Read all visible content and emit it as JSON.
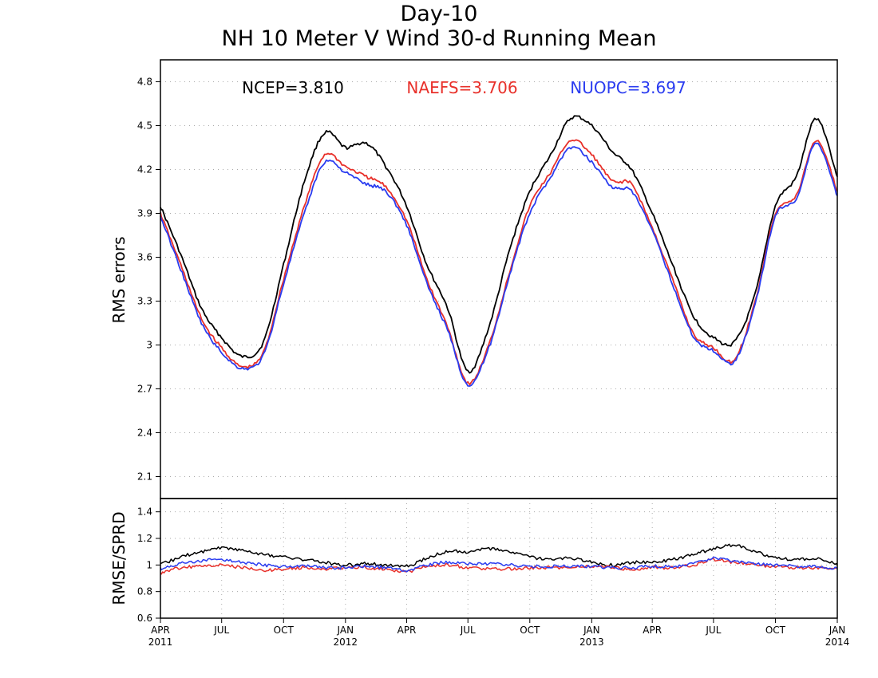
{
  "titles": [
    "Day-10",
    "NH 10 Meter V Wind 30-d Running Mean"
  ],
  "colors": {
    "NCEP": "#000000",
    "NAEFS": "#e8302a",
    "NUOPC": "#2a3cf0"
  },
  "chart_data": [
    {
      "type": "line",
      "panel": "top",
      "ylabel": "RMS errors",
      "ylim": [
        1.95,
        4.95
      ],
      "yticks": [
        2.1,
        2.4,
        2.7,
        3,
        3.3,
        3.6,
        3.9,
        4.2,
        4.5,
        4.8
      ],
      "ytick_labels": [
        "2.1",
        "2.4",
        "2.7",
        "3",
        "3.3",
        "3.6",
        "3.9",
        "4.2",
        "4.5",
        "4.8"
      ],
      "xlim": [
        "2011-04-01",
        "2014-01-01"
      ],
      "grid": true,
      "stats": [
        {
          "name": "NCEP",
          "label": "NCEP=3.810",
          "value": 3.81
        },
        {
          "name": "NAEFS",
          "label": "NAEFS=3.706",
          "value": 3.706
        },
        {
          "name": "NUOPC",
          "label": "NUOPC=3.697",
          "value": 3.697
        }
      ],
      "x": [
        "2011-04-01",
        "2011-05-01",
        "2011-06-01",
        "2011-07-01",
        "2011-08-01",
        "2011-09-01",
        "2011-10-01",
        "2011-11-01",
        "2011-12-01",
        "2012-01-01",
        "2012-02-01",
        "2012-03-01",
        "2012-04-01",
        "2012-05-01",
        "2012-06-01",
        "2012-07-01",
        "2012-08-01",
        "2012-09-01",
        "2012-10-01",
        "2012-11-01",
        "2012-12-01",
        "2013-01-01",
        "2013-02-01",
        "2013-03-01",
        "2013-04-01",
        "2013-05-01",
        "2013-06-01",
        "2013-07-01",
        "2013-08-01",
        "2013-09-01",
        "2013-10-01",
        "2013-11-01",
        "2013-12-01",
        "2014-01-01"
      ],
      "series": [
        {
          "name": "NCEP",
          "values": [
            3.95,
            3.62,
            3.25,
            3.05,
            2.92,
            3.02,
            3.55,
            4.12,
            4.45,
            4.35,
            4.38,
            4.22,
            3.95,
            3.55,
            3.25,
            2.82,
            3.12,
            3.65,
            4.05,
            4.3,
            4.55,
            4.5,
            4.32,
            4.2,
            3.9,
            3.55,
            3.2,
            3.05,
            3.02,
            3.35,
            3.95,
            4.15,
            4.55,
            4.15
          ]
        },
        {
          "name": "NAEFS",
          "values": [
            3.9,
            3.55,
            3.18,
            2.98,
            2.85,
            2.95,
            3.45,
            3.95,
            4.3,
            4.22,
            4.15,
            4.08,
            3.85,
            3.45,
            3.12,
            2.74,
            3.0,
            3.5,
            3.95,
            4.18,
            4.4,
            4.3,
            4.12,
            4.1,
            3.8,
            3.45,
            3.08,
            2.98,
            2.9,
            3.3,
            3.9,
            4.02,
            4.4,
            4.05
          ]
        },
        {
          "name": "NUOPC",
          "values": [
            3.88,
            3.52,
            3.15,
            2.95,
            2.84,
            2.93,
            3.42,
            3.9,
            4.25,
            4.18,
            4.1,
            4.05,
            3.82,
            3.42,
            3.1,
            2.73,
            2.98,
            3.48,
            3.9,
            4.15,
            4.35,
            4.25,
            4.08,
            4.05,
            3.78,
            3.42,
            3.06,
            2.96,
            2.89,
            3.28,
            3.88,
            4.0,
            4.38,
            4.02
          ]
        }
      ]
    },
    {
      "type": "line",
      "panel": "bottom",
      "ylabel": "RMSE/SPRD",
      "ylim": [
        0.6,
        1.5
      ],
      "yticks": [
        0.6,
        0.8,
        1,
        1.2,
        1.4
      ],
      "ytick_labels": [
        "0.6",
        "0.8",
        "1",
        "1.2",
        "1.4"
      ],
      "xlim": [
        "2011-04-01",
        "2014-01-01"
      ],
      "grid": true,
      "xticks": [
        "2011-04-01",
        "2011-07-01",
        "2011-10-01",
        "2012-01-01",
        "2012-04-01",
        "2012-07-01",
        "2012-10-01",
        "2013-01-01",
        "2013-04-01",
        "2013-07-01",
        "2013-10-01",
        "2014-01-01"
      ],
      "xtick_labels": [
        "APR",
        "JUL",
        "OCT",
        "JAN",
        "APR",
        "JUL",
        "OCT",
        "JAN",
        "APR",
        "JUL",
        "OCT",
        "JAN"
      ],
      "xtick_years": [
        "2011",
        "",
        "",
        "2012",
        "",
        "",
        "",
        "2013",
        "",
        "",
        "",
        "2014"
      ],
      "x": [
        "2011-04-01",
        "2011-05-01",
        "2011-06-01",
        "2011-07-01",
        "2011-08-01",
        "2011-09-01",
        "2011-10-01",
        "2011-11-01",
        "2011-12-01",
        "2012-01-01",
        "2012-02-01",
        "2012-03-01",
        "2012-04-01",
        "2012-05-01",
        "2012-06-01",
        "2012-07-01",
        "2012-08-01",
        "2012-09-01",
        "2012-10-01",
        "2012-11-01",
        "2012-12-01",
        "2013-01-01",
        "2013-02-01",
        "2013-03-01",
        "2013-04-01",
        "2013-05-01",
        "2013-06-01",
        "2013-07-01",
        "2013-08-01",
        "2013-09-01",
        "2013-10-01",
        "2013-11-01",
        "2013-12-01",
        "2014-01-01"
      ],
      "series": [
        {
          "name": "NCEP",
          "values": [
            1.0,
            1.06,
            1.1,
            1.13,
            1.11,
            1.08,
            1.06,
            1.04,
            1.02,
            1.0,
            1.01,
            1.0,
            0.99,
            1.05,
            1.1,
            1.1,
            1.12,
            1.1,
            1.06,
            1.04,
            1.05,
            1.02,
            1.0,
            1.02,
            1.02,
            1.04,
            1.08,
            1.12,
            1.15,
            1.1,
            1.06,
            1.04,
            1.05,
            1.0
          ]
        },
        {
          "name": "NAEFS",
          "values": [
            0.94,
            0.98,
            0.99,
            1.0,
            0.98,
            0.96,
            0.97,
            0.98,
            0.97,
            0.98,
            0.98,
            0.97,
            0.95,
            0.99,
            1.0,
            0.98,
            0.97,
            0.97,
            0.98,
            0.98,
            0.98,
            0.99,
            0.98,
            0.97,
            0.98,
            0.98,
            1.0,
            1.04,
            1.02,
            1.0,
            0.99,
            0.98,
            0.98,
            0.97
          ]
        },
        {
          "name": "NUOPC",
          "values": [
            0.97,
            1.01,
            1.03,
            1.04,
            1.02,
            1.0,
            0.99,
            0.99,
            0.98,
            0.98,
            0.99,
            0.98,
            0.96,
            1.0,
            1.02,
            1.01,
            1.01,
            1.0,
            0.99,
            0.99,
            0.99,
            0.99,
            0.98,
            0.98,
            0.99,
            0.99,
            1.01,
            1.05,
            1.03,
            1.01,
            1.0,
            0.99,
            0.99,
            0.97
          ]
        }
      ]
    }
  ]
}
